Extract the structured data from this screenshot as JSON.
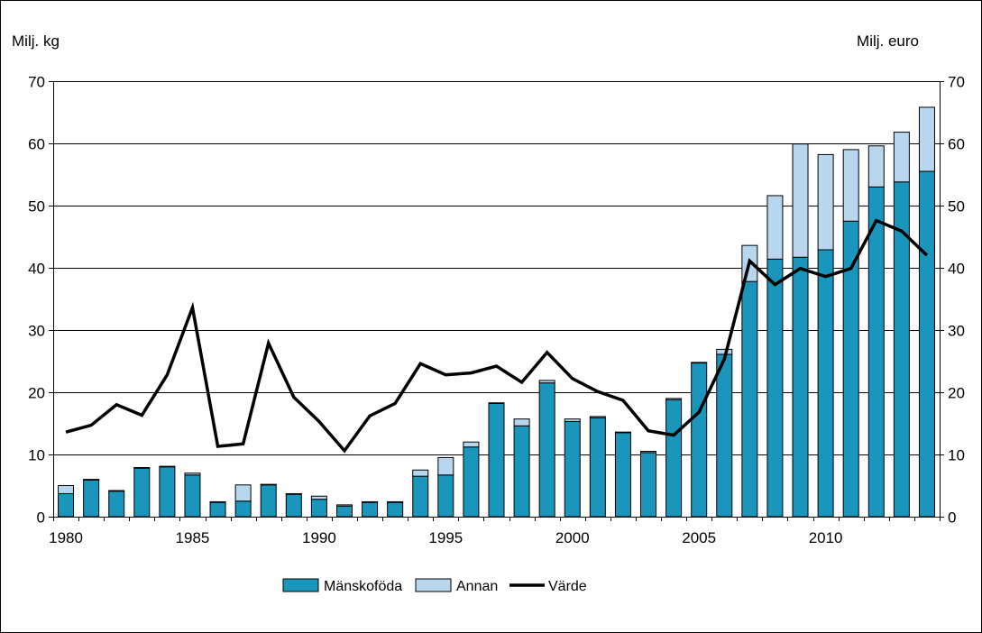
{
  "chart_data": {
    "type": "bar",
    "stacked": true,
    "y_left_label": "Milj. kg",
    "y_right_label": "Milj. euro",
    "ylim": [
      0,
      70
    ],
    "y_right_lim": [
      0,
      70
    ],
    "yticks": [
      0,
      10,
      20,
      30,
      40,
      50,
      60,
      70
    ],
    "x_tick_labels": [
      "1980",
      "1985",
      "1990",
      "1995",
      "2000",
      "2005",
      "2010"
    ],
    "grid": true,
    "legend_position": "bottom",
    "x": [
      1980,
      1981,
      1982,
      1983,
      1984,
      1985,
      1986,
      1987,
      1988,
      1989,
      1990,
      1991,
      1992,
      1993,
      1994,
      1995,
      1996,
      1997,
      1998,
      1999,
      2000,
      2001,
      2002,
      2003,
      2004,
      2005,
      2006,
      2007,
      2008,
      2009,
      2010,
      2011,
      2012,
      2013,
      2014
    ],
    "series": [
      {
        "name": "Mänskoföda",
        "kind": "bar",
        "color": "#1a96bd",
        "values": [
          3.7,
          5.9,
          4.1,
          7.8,
          8.0,
          6.7,
          2.3,
          2.5,
          5.1,
          3.6,
          2.8,
          1.7,
          2.3,
          2.3,
          6.5,
          6.7,
          11.2,
          18.2,
          14.6,
          21.5,
          15.3,
          15.9,
          13.5,
          10.3,
          18.8,
          24.7,
          26.1,
          37.8,
          41.4,
          41.7,
          42.9,
          47.5,
          53.0,
          53.8,
          55.5
        ]
      },
      {
        "name": "Annan",
        "kind": "bar",
        "color": "#b8d7ee",
        "values": [
          1.3,
          0.1,
          0.1,
          0.1,
          0.1,
          0.3,
          0.1,
          2.6,
          0.1,
          0.1,
          0.5,
          0.2,
          0.1,
          0.1,
          1.0,
          2.8,
          0.8,
          0.1,
          1.1,
          0.4,
          0.4,
          0.2,
          0.1,
          0.2,
          0.2,
          0.1,
          0.8,
          5.8,
          10.2,
          18.2,
          15.3,
          11.5,
          6.6,
          8.0,
          10.3
        ]
      },
      {
        "name": "Värde",
        "kind": "line",
        "axis": "right",
        "color": "#000000",
        "values": [
          13.6,
          14.7,
          18.0,
          16.3,
          22.8,
          33.6,
          11.3,
          11.7,
          27.9,
          19.2,
          15.3,
          10.6,
          16.2,
          18.2,
          24.6,
          22.8,
          23.1,
          24.2,
          21.6,
          26.4,
          22.2,
          20.1,
          18.7,
          13.8,
          13.1,
          16.8,
          25.3,
          41.1,
          37.3,
          39.9,
          38.6,
          39.9,
          47.6,
          45.9,
          42.0
        ]
      }
    ]
  }
}
